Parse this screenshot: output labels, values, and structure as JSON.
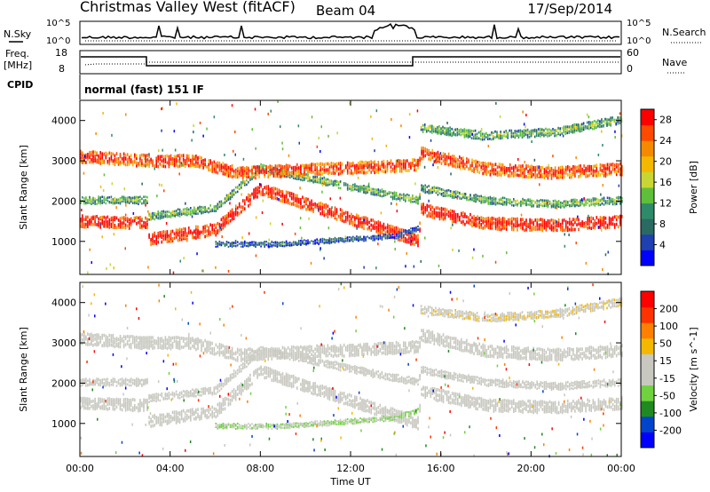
{
  "header": {
    "station": "Christmas Valley West (fitACF)",
    "beam": "Beam 04",
    "date": "17/Sep/2014"
  },
  "strip_labels": {
    "nsky": "N.Sky",
    "nsearch": "N.Search",
    "freq": "Freq.",
    "freq_unit": "[MHz]",
    "nave": "Nave",
    "cpid": "CPID",
    "cpid_value": "normal (fast) 151 IF"
  },
  "strip_ticks": {
    "noise_left": [
      "10^5",
      "10^0"
    ],
    "noise_right": [
      "10^5",
      "10^0"
    ],
    "freq_left": [
      "18",
      "8"
    ],
    "nave_right": [
      "60",
      "0"
    ]
  },
  "colors": {
    "power_scale": [
      "#0000ff",
      "#1e40b0",
      "#2a6a62",
      "#2f8a6a",
      "#5fbf3a",
      "#c8d633",
      "#f5b800",
      "#f58a00",
      "#ff4a00",
      "#ff0000"
    ],
    "velocity_scale": [
      "#0000ff",
      "#0044cc",
      "#1f8a1f",
      "#6fd23f",
      "#c8c8c0",
      "#c8c8c0",
      "#f5b800",
      "#ff8000",
      "#ff3300",
      "#ff0000"
    ]
  },
  "chart_data": [
    {
      "type": "heatmap",
      "title": "",
      "xlabel": "",
      "ylabel": "Slant Range [km]",
      "xlim": [
        "00:00",
        "00:00"
      ],
      "ylim": [
        180,
        4500
      ],
      "x_ticks": [
        "00:00",
        "04:00",
        "08:00",
        "12:00",
        "16:00",
        "20:00",
        "00:00"
      ],
      "y_ticks": [
        1000,
        2000,
        3000,
        4000
      ],
      "colorbar": {
        "label": "Power [dB]",
        "ticks": [
          28,
          24,
          20,
          16,
          12,
          8,
          4
        ],
        "range": [
          0,
          30
        ]
      },
      "bands": [
        {
          "name": "near",
          "x": [
            0,
            3,
            3,
            6,
            8,
            14,
            15,
            15.1,
            18,
            21,
            24
          ],
          "y": [
            1500,
            1450,
            1050,
            1300,
            2300,
            1200,
            1000,
            1800,
            1450,
            1400,
            1500
          ],
          "width": 300,
          "value": 26
        },
        {
          "name": "mid",
          "x": [
            0,
            3,
            3,
            6,
            8,
            14,
            15,
            15.1,
            18,
            21,
            24
          ],
          "y": [
            2000,
            2000,
            1600,
            1800,
            2800,
            2100,
            2000,
            2300,
            2000,
            1900,
            2000
          ],
          "width": 180,
          "value": 10
        },
        {
          "name": "far",
          "x": [
            0,
            3,
            5,
            7,
            15,
            15.1,
            18,
            21,
            24
          ],
          "y": [
            3100,
            3000,
            3000,
            2700,
            2900,
            3200,
            2800,
            2700,
            2800
          ],
          "width": 300,
          "value": 24
        },
        {
          "name": "farthest",
          "x": [
            15.1,
            18,
            21,
            24
          ],
          "y": [
            3800,
            3600,
            3700,
            4000
          ],
          "width": 200,
          "value": 10
        },
        {
          "name": "ground",
          "x": [
            6,
            9,
            14,
            15
          ],
          "y": [
            900,
            900,
            1100,
            1300
          ],
          "width": 120,
          "value": 4
        }
      ]
    },
    {
      "type": "heatmap",
      "title": "",
      "xlabel": "Time UT",
      "ylabel": "Slant Range [km]",
      "xlim": [
        "00:00",
        "00:00"
      ],
      "ylim": [
        180,
        4500
      ],
      "x_ticks": [
        "00:00",
        "04:00",
        "08:00",
        "12:00",
        "16:00",
        "20:00",
        "00:00"
      ],
      "y_ticks": [
        1000,
        2000,
        3000,
        4000
      ],
      "colorbar": {
        "label": "Velocity [m s^-1]",
        "ticks": [
          200,
          100,
          50,
          15,
          -15,
          -50,
          -100,
          -200
        ],
        "range": [
          -250,
          250
        ]
      },
      "bands": [
        {
          "name": "near",
          "x": [
            0,
            3,
            3,
            6,
            8,
            14,
            15,
            15.1,
            18,
            21,
            24
          ],
          "y": [
            1500,
            1450,
            1050,
            1300,
            2300,
            1200,
            1000,
            1800,
            1450,
            1400,
            1500
          ],
          "width": 300,
          "value": 0
        },
        {
          "name": "mid",
          "x": [
            0,
            3,
            3,
            6,
            8,
            14,
            15,
            15.1,
            18,
            21,
            24
          ],
          "y": [
            2000,
            2000,
            1600,
            1800,
            2800,
            2100,
            2000,
            2300,
            2000,
            1900,
            2000
          ],
          "width": 180,
          "value": 0
        },
        {
          "name": "far",
          "x": [
            0,
            3,
            5,
            7,
            15,
            15.1,
            18,
            21,
            24
          ],
          "y": [
            3100,
            3000,
            3000,
            2700,
            2900,
            3200,
            2800,
            2700,
            2800
          ],
          "width": 300,
          "value": 0
        },
        {
          "name": "farthest",
          "x": [
            15.1,
            18,
            21,
            24
          ],
          "y": [
            3800,
            3600,
            3700,
            4000
          ],
          "width": 200,
          "value": 40
        },
        {
          "name": "ground",
          "x": [
            6,
            9,
            14,
            15
          ],
          "y": [
            900,
            900,
            1100,
            1300
          ],
          "width": 120,
          "value": -50
        }
      ]
    }
  ]
}
